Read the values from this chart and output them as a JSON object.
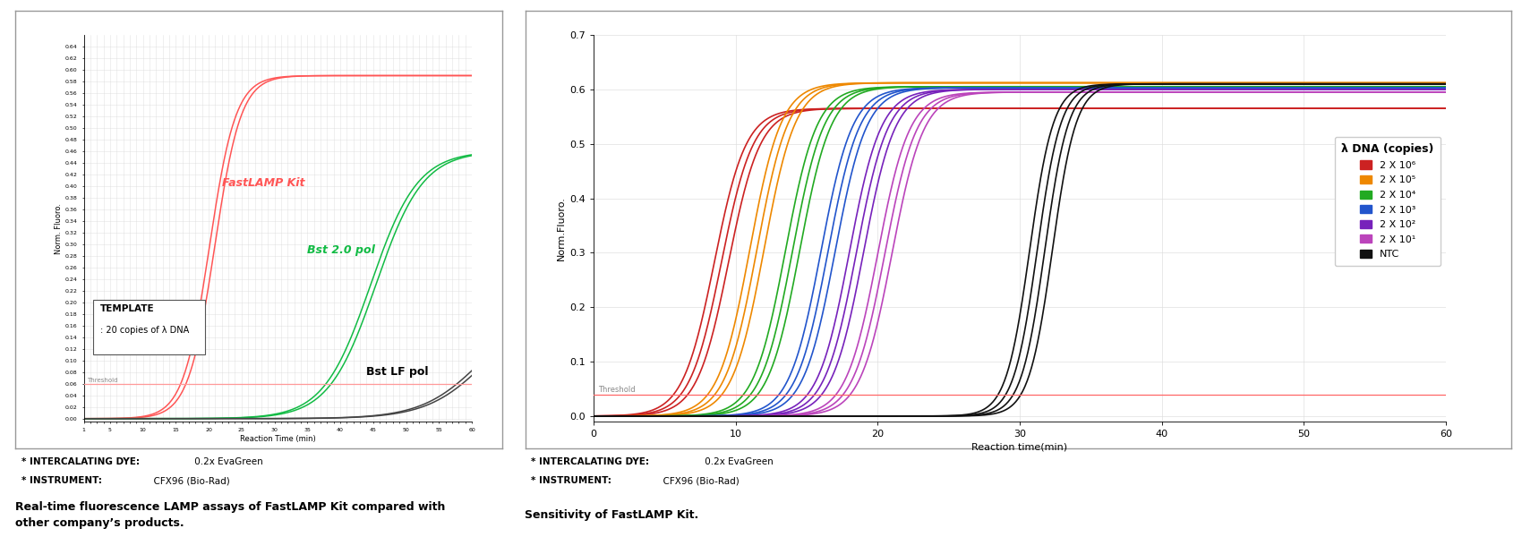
{
  "fig_width": 17.0,
  "fig_height": 6.0,
  "dpi": 100,
  "left_panel": {
    "xlim": [
      1,
      60
    ],
    "ylim": [
      -0.005,
      0.66
    ],
    "yticks": [
      0.0,
      0.02,
      0.04,
      0.06,
      0.08,
      0.1,
      0.12,
      0.14,
      0.16,
      0.18,
      0.2,
      0.22,
      0.24,
      0.26,
      0.28,
      0.3,
      0.32,
      0.34,
      0.36,
      0.38,
      0.4,
      0.42,
      0.44,
      0.46,
      0.48,
      0.5,
      0.52,
      0.54,
      0.56,
      0.58,
      0.6,
      0.62,
      0.64
    ],
    "xlabel": "Reaction Time (min)",
    "ylabel": "Norm. Fluoro.",
    "threshold": 0.06,
    "threshold_color": "#ff9999",
    "fastlamp_color": "#ff5555",
    "bst20_color": "#11bb44",
    "bstlf_color": "#444444",
    "fastlamp_midpoint": 20.5,
    "fastlamp_plateau": 0.59,
    "fastlamp_steepness": 0.5,
    "bst20_midpoint": 45.0,
    "bst20_plateau": 0.46,
    "bst20_steepness": 0.28,
    "bstlf_midpoint": 62.0,
    "bstlf_plateau": 0.2,
    "bstlf_steepness": 0.22,
    "label_fastlamp": "FastLAMP Kit",
    "label_bst20": "Bst 2.0 pol",
    "label_bstlf": "Bst LF pol",
    "note_intercalating_bold": "* INTERCALATING DYE:",
    "note_intercalating_normal": " 0.2x EvaGreen",
    "note_instrument_bold": "* INSTRUMENT:",
    "note_instrument_normal": "  CFX96 (Bio-Rad)",
    "caption1": "Real-time fluorescence LAMP assays of FastLAMP Kit compared with",
    "caption2": "other company’s products."
  },
  "right_panel": {
    "xlim": [
      0,
      60
    ],
    "ylim": [
      -0.01,
      0.7
    ],
    "yticks": [
      0.0,
      0.1,
      0.2,
      0.3,
      0.4,
      0.5,
      0.6,
      0.7
    ],
    "xlabel": "Reaction time(min)",
    "ylabel": "Norm.Fluoro.",
    "threshold": 0.04,
    "threshold_color": "#ff6666",
    "series": [
      {
        "label": "2 X 10⁶",
        "color": "#cc2222",
        "midpoint": 9.0,
        "plateau": 0.565,
        "n_rep": 3,
        "spread": 0.5,
        "steepness": 0.9
      },
      {
        "label": "2 X 10⁵",
        "color": "#ee8800",
        "midpoint": 11.5,
        "plateau": 0.612,
        "n_rep": 3,
        "spread": 0.5,
        "steepness": 0.9
      },
      {
        "label": "2 X 10⁴",
        "color": "#22aa22",
        "midpoint": 14.0,
        "plateau": 0.605,
        "n_rep": 3,
        "spread": 0.5,
        "steepness": 0.9
      },
      {
        "label": "2 X 10³",
        "color": "#2255cc",
        "midpoint": 16.5,
        "plateau": 0.603,
        "n_rep": 3,
        "spread": 0.5,
        "steepness": 0.9
      },
      {
        "label": "2 X 10²",
        "color": "#7722bb",
        "midpoint": 18.5,
        "plateau": 0.6,
        "n_rep": 3,
        "spread": 0.5,
        "steepness": 0.9
      },
      {
        "label": "2 X 10¹",
        "color": "#bb44bb",
        "midpoint": 20.5,
        "plateau": 0.595,
        "n_rep": 3,
        "spread": 0.5,
        "steepness": 0.9
      },
      {
        "label": "NTC",
        "color": "#111111",
        "midpoint": 31.5,
        "plateau": 0.61,
        "n_rep": 4,
        "spread": 0.8,
        "steepness": 1.2
      }
    ],
    "legend_title": "λ DNA (copies)",
    "note_intercalating_bold": "* INTERCALATING DYE:",
    "note_intercalating_normal": " 0.2x EvaGreen",
    "note_instrument_bold": "* INSTRUMENT:",
    "note_instrument_normal": "  CFX96 (Bio-Rad)",
    "caption": "Sensitivity of FastLAMP Kit."
  }
}
